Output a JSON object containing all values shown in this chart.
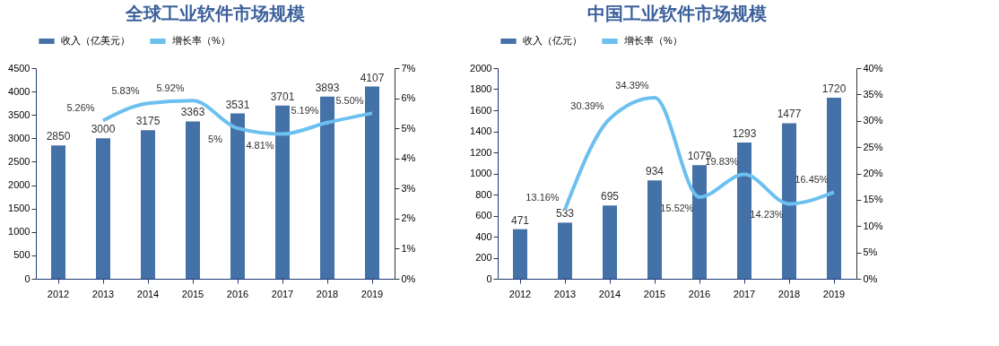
{
  "chart_data": [
    {
      "type": "bar",
      "title": "全球工业软件市场规模",
      "categories": [
        "2012",
        "2013",
        "2014",
        "2015",
        "2016",
        "2017",
        "2018",
        "2019"
      ],
      "series": [
        {
          "name": "收入（亿美元）",
          "color": "#4472a8",
          "values": [
            2850,
            3000,
            3175,
            3363,
            3531,
            3701,
            3893,
            4107
          ],
          "value_labels": [
            "2850",
            "3000",
            "3175",
            "3363",
            "3531",
            "3701",
            "3893",
            "4107"
          ]
        },
        {
          "name": "增长率（%）",
          "type": "line",
          "axis": "y2",
          "color": "#6cc0f0",
          "values": [
            null,
            5.26,
            5.83,
            5.92,
            5.0,
            4.81,
            5.19,
            5.5
          ],
          "value_labels": [
            null,
            "5.26%",
            "5.83%",
            "5.92%",
            "5%",
            "4.81%",
            "5.19%",
            "5.50%"
          ]
        }
      ],
      "ylim": [
        0,
        4500
      ],
      "yticks": [
        0,
        500,
        1000,
        1500,
        2000,
        2500,
        3000,
        3500,
        4000,
        4500
      ],
      "y2lim": [
        0,
        7
      ],
      "y2ticks": [
        {
          "value": 0,
          "label": "0%"
        },
        {
          "value": 1,
          "label": "1%"
        },
        {
          "value": 2,
          "label": "2%"
        },
        {
          "value": 3,
          "label": "3%"
        },
        {
          "value": 4,
          "label": "4%"
        },
        {
          "value": 5,
          "label": "5%"
        },
        {
          "value": 6,
          "label": "6%"
        },
        {
          "value": 7,
          "label": "7%"
        }
      ],
      "legend": "top",
      "grid": false
    },
    {
      "type": "bar",
      "title": "中国工业软件市场规模",
      "categories": [
        "2012",
        "2013",
        "2014",
        "2015",
        "2016",
        "2017",
        "2018",
        "2019"
      ],
      "series": [
        {
          "name": "收入（亿元）",
          "color": "#4472a8",
          "values": [
            471,
            533,
            695,
            934,
            1079,
            1293,
            1477,
            1720
          ],
          "value_labels": [
            "471",
            "533",
            "695",
            "934",
            "1079",
            "1293",
            "1477",
            "1720"
          ]
        },
        {
          "name": "增长率（%）",
          "type": "line",
          "axis": "y2",
          "color": "#6cc0f0",
          "values": [
            null,
            13.16,
            30.39,
            34.39,
            15.52,
            19.83,
            14.23,
            16.45
          ],
          "value_labels": [
            null,
            "13.16%",
            "30.39%",
            "34.39%",
            "15.52%",
            "19.83%",
            "14.23%",
            "16.45%"
          ]
        }
      ],
      "ylim": [
        0,
        2000
      ],
      "yticks": [
        0,
        200,
        400,
        600,
        800,
        1000,
        1200,
        1400,
        1600,
        1800,
        2000
      ],
      "y2lim": [
        0,
        40
      ],
      "y2ticks": [
        {
          "value": 0,
          "label": "0%"
        },
        {
          "value": 5,
          "label": "5%"
        },
        {
          "value": 10,
          "label": "10%"
        },
        {
          "value": 15,
          "label": "15%"
        },
        {
          "value": 20,
          "label": "20%"
        },
        {
          "value": 25,
          "label": "25%"
        },
        {
          "value": 30,
          "label": "30%"
        },
        {
          "value": 35,
          "label": "35%"
        },
        {
          "value": 40,
          "label": "40%"
        }
      ],
      "legend": "top",
      "grid": false
    }
  ]
}
